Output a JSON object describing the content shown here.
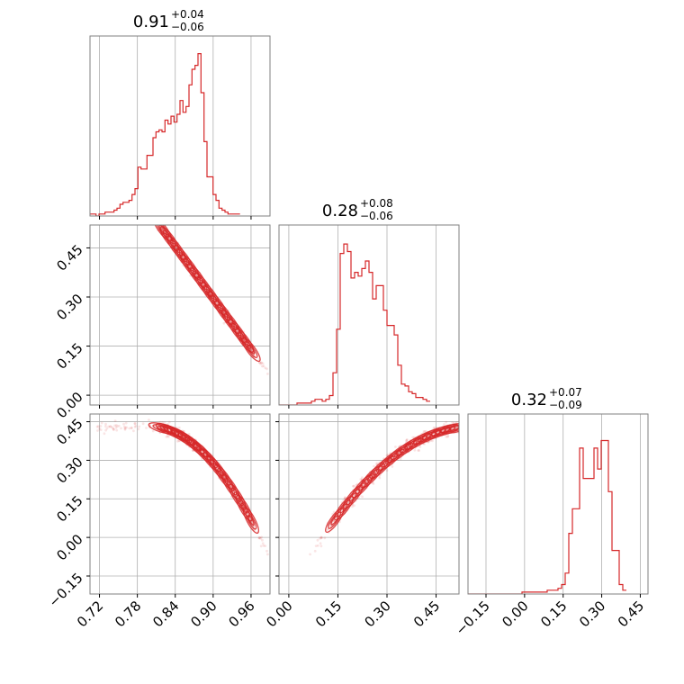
{
  "chart_data": {
    "type": "corner",
    "color": "#d62728",
    "params": [
      {
        "title": {
          "median": "0.91",
          "plus": "+0.04",
          "minus": "−0.06"
        },
        "range": [
          0.705,
          0.99
        ],
        "ticks": [
          "0.72",
          "0.78",
          "0.84",
          "0.90",
          "0.96"
        ],
        "tick_values": [
          0.72,
          0.78,
          0.84,
          0.9,
          0.96
        ],
        "hist": {
          "step": 0.00475,
          "counts": [
            1,
            1,
            0,
            1,
            1,
            2,
            2,
            2,
            3,
            4,
            6,
            7,
            7,
            8,
            11,
            14,
            25,
            24,
            24,
            31,
            31,
            40,
            43,
            44,
            43,
            49,
            47,
            51,
            48,
            52,
            59,
            53,
            56,
            67,
            75,
            77,
            83,
            63,
            38,
            20,
            20,
            11,
            8,
            4,
            3,
            2,
            1,
            1,
            1,
            1
          ],
          "ymax": 92
        }
      },
      {
        "title": {
          "median": "0.28",
          "plus": "+0.08",
          "minus": "−0.06"
        },
        "range": [
          -0.03,
          0.52
        ],
        "ticks": [
          "0.00",
          "0.15",
          "0.30",
          "0.45"
        ],
        "tick_values": [
          0.0,
          0.15,
          0.3,
          0.45
        ],
        "hist": {
          "step": 0.011,
          "counts": [
            0,
            0,
            0,
            0,
            0,
            1,
            1,
            1,
            1,
            2,
            3,
            3,
            2,
            3,
            5,
            17,
            40,
            80,
            85,
            81,
            67,
            70,
            68,
            72,
            76,
            70,
            56,
            63,
            63,
            50,
            42,
            42,
            37,
            21,
            11,
            10,
            7,
            6,
            4,
            4,
            3,
            2
          ],
          "ymax": 95
        }
      },
      {
        "title": {
          "median": "0.32",
          "plus": "+0.07",
          "minus": "−0.09"
        },
        "range": [
          -0.22,
          0.48
        ],
        "ticks": [
          "−0.15",
          "0.00",
          "0.15",
          "0.30",
          "0.45"
        ],
        "tick_values": [
          -0.15,
          0.0,
          0.15,
          0.3,
          0.45
        ],
        "hist": {
          "step": 0.014,
          "counts": [
            0,
            0,
            0,
            0,
            0,
            0,
            0,
            0,
            0,
            0,
            0,
            0,
            0,
            0,
            0,
            1,
            1,
            1,
            1,
            1,
            1,
            1,
            2,
            2,
            2,
            3,
            5,
            11,
            32,
            45,
            45,
            77,
            61,
            61,
            61,
            77,
            66,
            81,
            81,
            54,
            23,
            23,
            5,
            2
          ],
          "ymax": 95
        }
      }
    ]
  }
}
